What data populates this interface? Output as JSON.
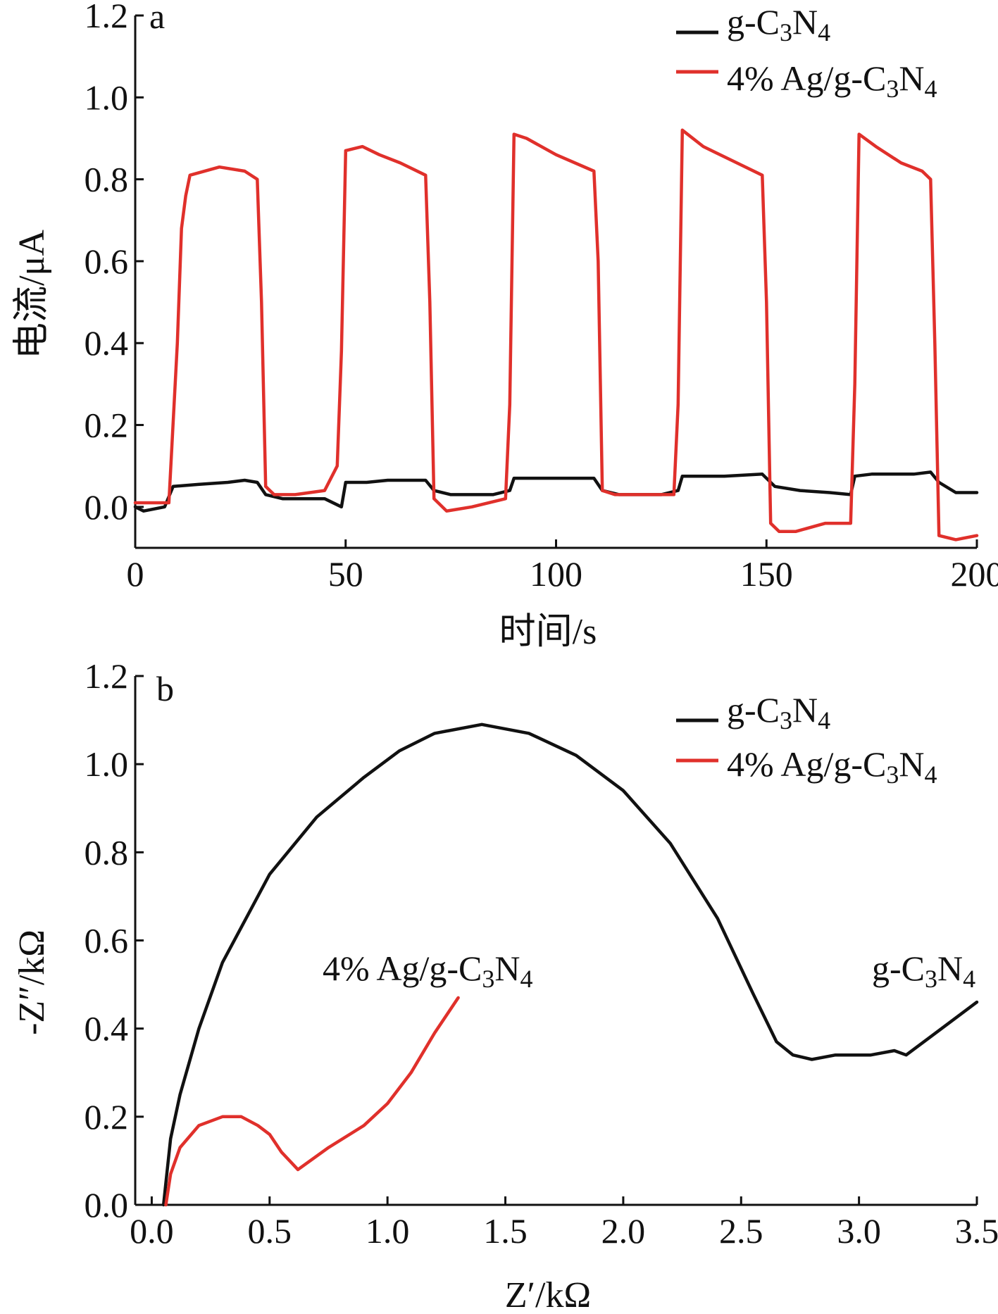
{
  "colors": {
    "g_c3n4": "#111111",
    "ag_g_c3n4": "#e0302b"
  },
  "chart_data": [
    {
      "type": "line",
      "panel_label": "a",
      "xlabel": "时间/s",
      "ylabel": "电流/μA",
      "xlim": [
        0,
        200
      ],
      "ylim": [
        -0.1,
        1.2
      ],
      "x_ticks": [
        "0",
        "50",
        "100",
        "150",
        "200"
      ],
      "y_ticks": [
        "0.0",
        "0.2",
        "0.4",
        "0.6",
        "0.8",
        "1.0",
        "1.2"
      ],
      "legend_position": "top-right",
      "series": [
        {
          "name": "g-C3N4",
          "color_key": "g_c3n4",
          "points": [
            [
              0,
              0.0
            ],
            [
              2,
              -0.01
            ],
            [
              7,
              0.0
            ],
            [
              9,
              0.05
            ],
            [
              15,
              0.055
            ],
            [
              22,
              0.06
            ],
            [
              26,
              0.065
            ],
            [
              29,
              0.06
            ],
            [
              31,
              0.03
            ],
            [
              35,
              0.02
            ],
            [
              45,
              0.02
            ],
            [
              49,
              0.0
            ],
            [
              50,
              0.06
            ],
            [
              55,
              0.06
            ],
            [
              60,
              0.065
            ],
            [
              69,
              0.065
            ],
            [
              71,
              0.04
            ],
            [
              75,
              0.03
            ],
            [
              85,
              0.03
            ],
            [
              89,
              0.04
            ],
            [
              90,
              0.07
            ],
            [
              100,
              0.07
            ],
            [
              109,
              0.07
            ],
            [
              111,
              0.04
            ],
            [
              115,
              0.03
            ],
            [
              125,
              0.03
            ],
            [
              129,
              0.04
            ],
            [
              130,
              0.075
            ],
            [
              140,
              0.075
            ],
            [
              149,
              0.08
            ],
            [
              152,
              0.05
            ],
            [
              158,
              0.04
            ],
            [
              165,
              0.035
            ],
            [
              170,
              0.03
            ],
            [
              171,
              0.075
            ],
            [
              175,
              0.08
            ],
            [
              185,
              0.08
            ],
            [
              189,
              0.085
            ],
            [
              191,
              0.06
            ],
            [
              195,
              0.035
            ],
            [
              200,
              0.035
            ]
          ]
        },
        {
          "name": "4% Ag/g-C3N4",
          "color_key": "ag_g_c3n4",
          "points": [
            [
              0,
              0.01
            ],
            [
              8,
              0.01
            ],
            [
              10,
              0.4
            ],
            [
              11,
              0.68
            ],
            [
              12,
              0.76
            ],
            [
              13,
              0.81
            ],
            [
              20,
              0.83
            ],
            [
              26,
              0.82
            ],
            [
              29,
              0.8
            ],
            [
              30,
              0.5
            ],
            [
              31,
              0.05
            ],
            [
              33,
              0.03
            ],
            [
              38,
              0.03
            ],
            [
              45,
              0.04
            ],
            [
              48,
              0.1
            ],
            [
              49,
              0.38
            ],
            [
              50,
              0.87
            ],
            [
              54,
              0.88
            ],
            [
              58,
              0.86
            ],
            [
              63,
              0.84
            ],
            [
              69,
              0.81
            ],
            [
              70,
              0.5
            ],
            [
              71,
              0.02
            ],
            [
              74,
              -0.01
            ],
            [
              80,
              0.0
            ],
            [
              88,
              0.02
            ],
            [
              89,
              0.25
            ],
            [
              90,
              0.91
            ],
            [
              93,
              0.9
            ],
            [
              100,
              0.86
            ],
            [
              109,
              0.82
            ],
            [
              110,
              0.6
            ],
            [
              111,
              0.04
            ],
            [
              114,
              0.03
            ],
            [
              122,
              0.03
            ],
            [
              128,
              0.03
            ],
            [
              129,
              0.25
            ],
            [
              130,
              0.92
            ],
            [
              135,
              0.88
            ],
            [
              143,
              0.84
            ],
            [
              149,
              0.81
            ],
            [
              150,
              0.5
            ],
            [
              151,
              -0.04
            ],
            [
              153,
              -0.06
            ],
            [
              157,
              -0.06
            ],
            [
              164,
              -0.04
            ],
            [
              170,
              -0.04
            ],
            [
              171,
              0.3
            ],
            [
              172,
              0.91
            ],
            [
              176,
              0.88
            ],
            [
              182,
              0.84
            ],
            [
              187,
              0.82
            ],
            [
              189,
              0.8
            ],
            [
              190,
              0.4
            ],
            [
              191,
              -0.07
            ],
            [
              195,
              -0.08
            ],
            [
              200,
              -0.07
            ]
          ]
        }
      ]
    },
    {
      "type": "line",
      "panel_label": "b",
      "xlabel": "Z′/kΩ",
      "ylabel": "-Z″/kΩ",
      "xlim": [
        -0.07,
        3.5
      ],
      "ylim": [
        0,
        1.2
      ],
      "x_ticks": [
        "0.0",
        "0.5",
        "1.0",
        "1.5",
        "2.0",
        "2.5",
        "3.0",
        "3.5"
      ],
      "y_ticks": [
        "0.0",
        "0.2",
        "0.4",
        "0.6",
        "0.8",
        "1.0",
        "1.2"
      ],
      "legend_position": "top-right",
      "annotations": [
        {
          "series": "4% Ag/g-C3N4",
          "at": [
            1.3,
            0.5
          ]
        },
        {
          "series": "g-C3N4",
          "at": [
            3.2,
            0.5
          ]
        }
      ],
      "series": [
        {
          "name": "g-C3N4",
          "color_key": "g_c3n4",
          "points": [
            [
              0.05,
              0.0
            ],
            [
              0.06,
              0.05
            ],
            [
              0.08,
              0.15
            ],
            [
              0.12,
              0.25
            ],
            [
              0.2,
              0.4
            ],
            [
              0.3,
              0.55
            ],
            [
              0.5,
              0.75
            ],
            [
              0.7,
              0.88
            ],
            [
              0.9,
              0.97
            ],
            [
              1.05,
              1.03
            ],
            [
              1.2,
              1.07
            ],
            [
              1.4,
              1.09
            ],
            [
              1.6,
              1.07
            ],
            [
              1.8,
              1.02
            ],
            [
              2.0,
              0.94
            ],
            [
              2.2,
              0.82
            ],
            [
              2.4,
              0.65
            ],
            [
              2.55,
              0.48
            ],
            [
              2.65,
              0.37
            ],
            [
              2.72,
              0.34
            ],
            [
              2.8,
              0.33
            ],
            [
              2.9,
              0.34
            ],
            [
              3.05,
              0.34
            ],
            [
              3.15,
              0.35
            ],
            [
              3.2,
              0.34
            ],
            [
              3.3,
              0.38
            ],
            [
              3.4,
              0.42
            ],
            [
              3.5,
              0.46
            ]
          ]
        },
        {
          "name": "4% Ag/g-C3N4",
          "color_key": "ag_g_c3n4",
          "points": [
            [
              0.06,
              0.0
            ],
            [
              0.08,
              0.07
            ],
            [
              0.12,
              0.13
            ],
            [
              0.2,
              0.18
            ],
            [
              0.3,
              0.2
            ],
            [
              0.38,
              0.2
            ],
            [
              0.45,
              0.18
            ],
            [
              0.5,
              0.16
            ],
            [
              0.55,
              0.12
            ],
            [
              0.62,
              0.08
            ],
            [
              0.75,
              0.13
            ],
            [
              0.9,
              0.18
            ],
            [
              1.0,
              0.23
            ],
            [
              1.1,
              0.3
            ],
            [
              1.2,
              0.39
            ],
            [
              1.3,
              0.47
            ]
          ]
        }
      ]
    }
  ]
}
